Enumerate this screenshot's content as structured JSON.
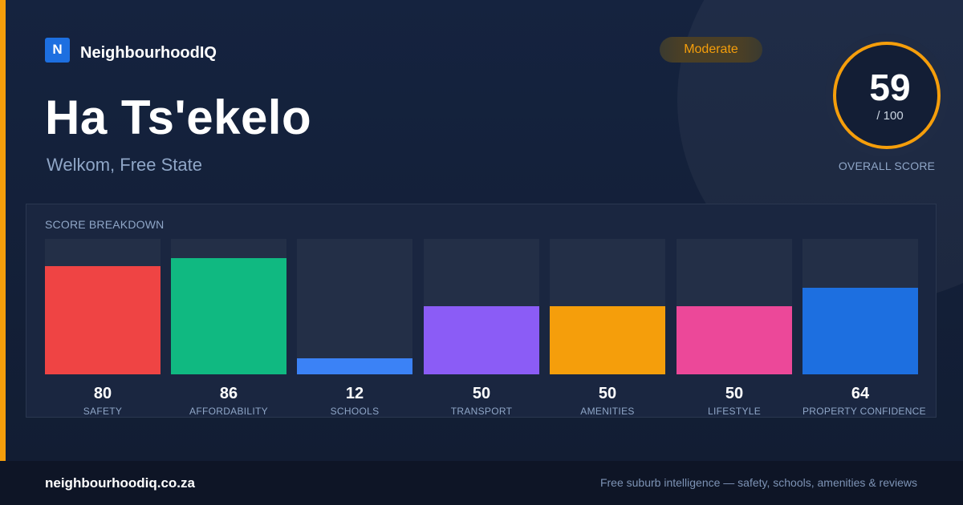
{
  "brand": {
    "logo_letter": "N",
    "name": "NeighbourhoodIQ",
    "logo_color": "#1d6fe0"
  },
  "suburb": {
    "name": "Ha Ts'ekelo",
    "location": "Welkom, Free State"
  },
  "rating": {
    "label": "Moderate",
    "color": "#f59e0b"
  },
  "overall": {
    "score": "59",
    "max": "/ 100",
    "caption": "OVERALL SCORE"
  },
  "breakdown": {
    "title": "SCORE BREAKDOWN",
    "items": [
      {
        "label": "SAFETY",
        "value": "80",
        "fill_fraction": 0.8,
        "color": "#ef4444"
      },
      {
        "label": "AFFORDABILITY",
        "value": "86",
        "fill_fraction": 0.86,
        "color": "#10b981"
      },
      {
        "label": "SCHOOLS",
        "value": "12",
        "fill_fraction": 0.12,
        "color": "#3b82f6"
      },
      {
        "label": "TRANSPORT",
        "value": "50",
        "fill_fraction": 0.5,
        "color": "#8b5cf6"
      },
      {
        "label": "AMENITIES",
        "value": "50",
        "fill_fraction": 0.5,
        "color": "#f59e0b"
      },
      {
        "label": "LIFESTYLE",
        "value": "50",
        "fill_fraction": 0.5,
        "color": "#ec4899"
      },
      {
        "label": "PROPERTY CONFIDENCE",
        "value": "64",
        "fill_fraction": 0.64,
        "color": "#1d6fe0"
      }
    ]
  },
  "footer": {
    "domain": "neighbourhoodiq.co.za",
    "tagline": "Free suburb intelligence — safety, schools, amenities & reviews"
  }
}
